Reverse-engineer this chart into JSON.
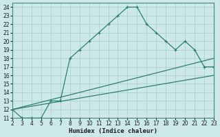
{
  "xlabel": "Humidex (Indice chaleur)",
  "bg_color": "#cce8e8",
  "line_color": "#2e7d6e",
  "grid_color": "#b0d4d4",
  "xlim": [
    2,
    23
  ],
  "ylim": [
    11,
    24.5
  ],
  "xticks": [
    2,
    3,
    4,
    5,
    6,
    7,
    8,
    9,
    10,
    11,
    12,
    13,
    14,
    15,
    16,
    17,
    18,
    19,
    20,
    21,
    22,
    23
  ],
  "yticks": [
    11,
    12,
    13,
    14,
    15,
    16,
    17,
    18,
    19,
    20,
    21,
    22,
    23,
    24
  ],
  "line1_x": [
    2,
    3,
    4,
    5,
    6,
    7,
    8,
    9,
    10,
    11,
    12,
    13,
    14,
    15,
    16,
    17,
    18,
    19,
    20,
    21,
    22,
    23
  ],
  "line1_y": [
    12,
    11,
    11,
    11,
    13,
    13,
    18,
    19,
    20,
    21,
    22,
    23,
    24,
    24,
    22,
    21,
    20,
    19,
    20,
    19,
    17,
    17
  ],
  "line2_x": [
    2,
    23
  ],
  "line2_y": [
    12,
    18
  ],
  "line3_x": [
    2,
    23
  ],
  "line3_y": [
    12,
    16
  ]
}
